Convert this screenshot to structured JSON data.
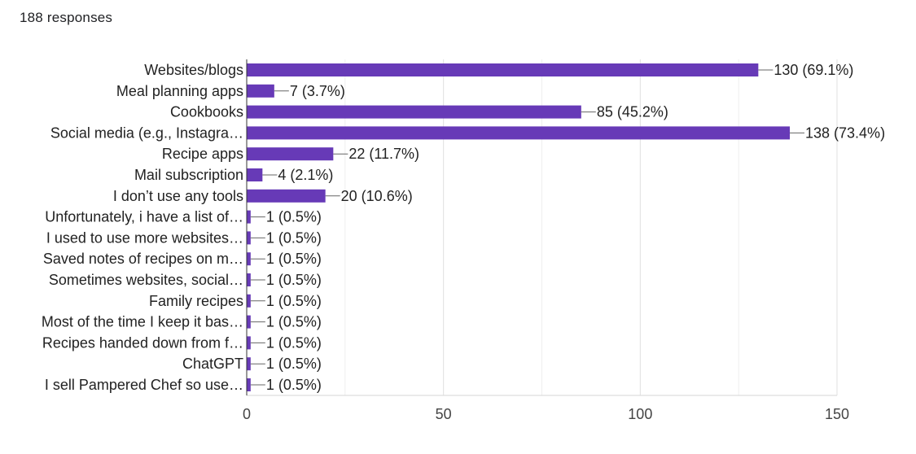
{
  "header": {
    "responses_label": "188 responses"
  },
  "chart_data": {
    "type": "bar",
    "orientation": "horizontal",
    "title": "",
    "xlabel": "",
    "ylabel": "",
    "xlim": [
      0,
      150
    ],
    "x_ticks": [
      0,
      50,
      100,
      150
    ],
    "grid": true,
    "bar_color": "#673ab7",
    "categories": [
      "Websites/blogs",
      "Meal planning apps",
      "Cookbooks",
      "Social media (e.g., Instagra…",
      "Recipe apps",
      "Mail subscription",
      "I don’t use any tools",
      "Unfortunately, i have a list of…",
      "I used to use more websites…",
      "Saved notes of recipes on m…",
      "Sometimes websites, social…",
      "Family recipes",
      "Most of the time I keep it bas…",
      "Recipes handed down from f…",
      "ChatGPT",
      "I sell Pampered Chef so use…"
    ],
    "values": [
      130,
      7,
      85,
      138,
      22,
      4,
      20,
      1,
      1,
      1,
      1,
      1,
      1,
      1,
      1,
      1
    ],
    "data_labels": [
      "130 (69.1%)",
      "7 (3.7%)",
      "85 (45.2%)",
      "138 (73.4%)",
      "22 (11.7%)",
      "4 (2.1%)",
      "20 (10.6%)",
      "1 (0.5%)",
      "1 (0.5%)",
      "1 (0.5%)",
      "1 (0.5%)",
      "1 (0.5%)",
      "1 (0.5%)",
      "1 (0.5%)",
      "1 (0.5%)",
      "1 (0.5%)"
    ]
  }
}
